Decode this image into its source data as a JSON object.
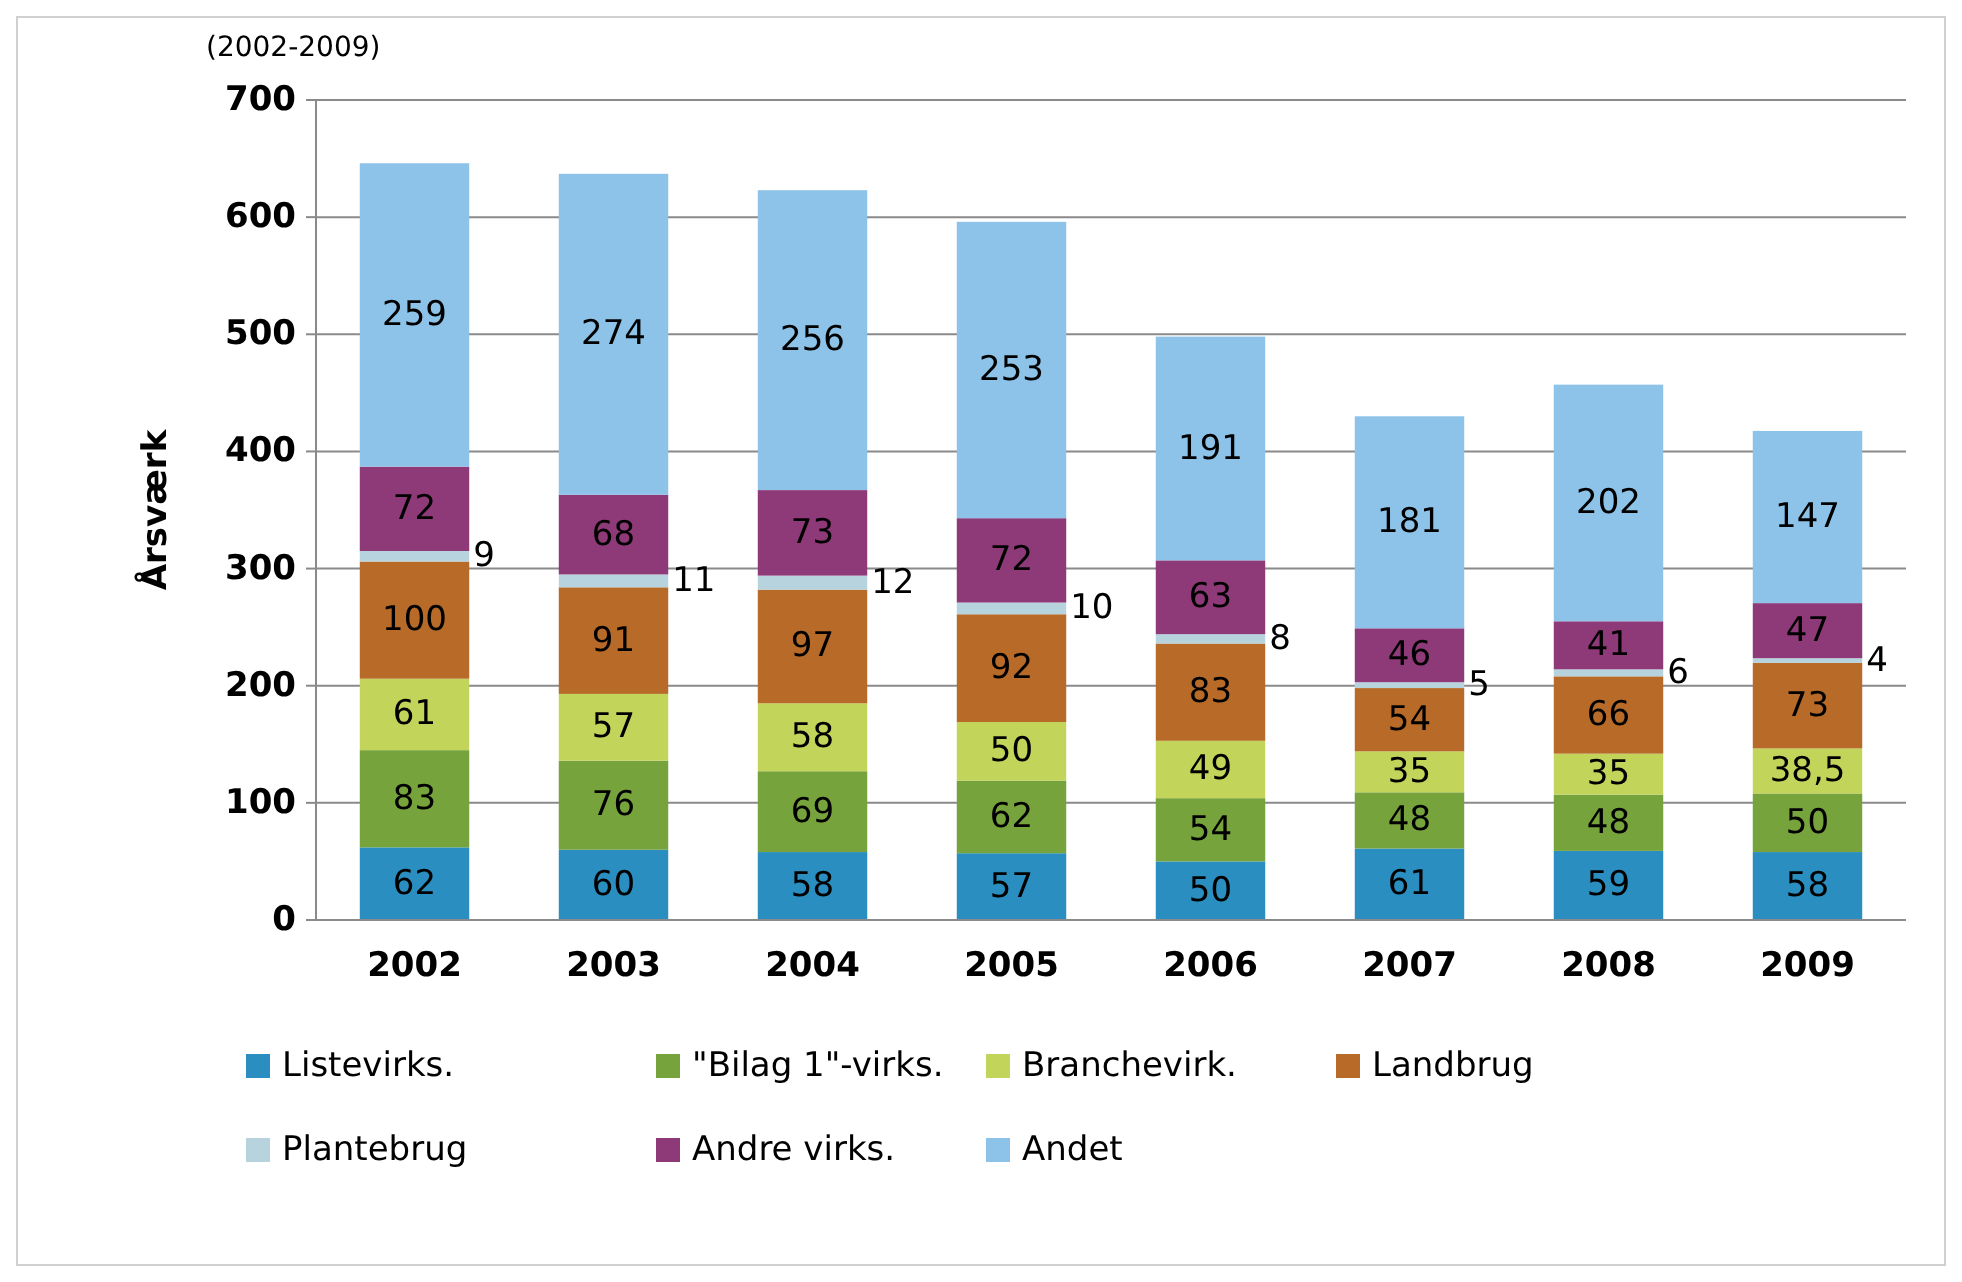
{
  "chart_data": {
    "type": "bar",
    "subtitle": "(2002-2009)",
    "ylabel": "Årsværk",
    "stacked": true,
    "grid": "y",
    "legend": "bottom",
    "categories": [
      "2002",
      "2003",
      "2004",
      "2005",
      "2006",
      "2007",
      "2008",
      "2009"
    ],
    "ylim": [
      0,
      700
    ],
    "yticks": [
      0,
      100,
      200,
      300,
      400,
      500,
      600,
      700
    ],
    "series": [
      {
        "name": "Listevirks.",
        "color": "#2a8fc0",
        "values": [
          62,
          60,
          58,
          57,
          50,
          61,
          59,
          58
        ],
        "value_labels": [
          "62",
          "60",
          "58",
          "57",
          "50",
          "61",
          "59",
          "58"
        ]
      },
      {
        "name": "\"Bilag 1\"-virks.",
        "color": "#77a33c",
        "values": [
          83,
          76,
          69,
          62,
          54,
          48,
          48,
          50
        ],
        "value_labels": [
          "83",
          "76",
          "69",
          "62",
          "54",
          "48",
          "48",
          "50"
        ]
      },
      {
        "name": "Branchevirk.",
        "color": "#c3d45a",
        "values": [
          61,
          57,
          58,
          50,
          49,
          35,
          35,
          38.5
        ],
        "value_labels": [
          "61",
          "57",
          "58",
          "50",
          "49",
          "35",
          "35",
          "38,5"
        ]
      },
      {
        "name": "Landbrug",
        "color": "#b86b28",
        "values": [
          100,
          91,
          97,
          92,
          83,
          54,
          66,
          73
        ],
        "value_labels": [
          "100",
          "91",
          "97",
          "92",
          "83",
          "54",
          "66",
          "73"
        ]
      },
      {
        "name": "Plantebrug",
        "color": "#b7d3de",
        "values": [
          9,
          11,
          12,
          10,
          8,
          5,
          6,
          4
        ],
        "value_labels": [
          "9",
          "11",
          "12",
          "10",
          "8",
          "5",
          "6",
          "4"
        ]
      },
      {
        "name": "Andre virks.",
        "color": "#8e3a78",
        "values": [
          72,
          68,
          73,
          72,
          63,
          46,
          41,
          47
        ],
        "value_labels": [
          "72",
          "68",
          "73",
          "72",
          "63",
          "46",
          "41",
          "47"
        ]
      },
      {
        "name": "Andet",
        "color": "#8dc3e8",
        "values": [
          259,
          274,
          256,
          253,
          191,
          181,
          202,
          147
        ],
        "value_labels": [
          "259",
          "274",
          "256",
          "253",
          "191",
          "181",
          "202",
          "147"
        ]
      }
    ]
  }
}
